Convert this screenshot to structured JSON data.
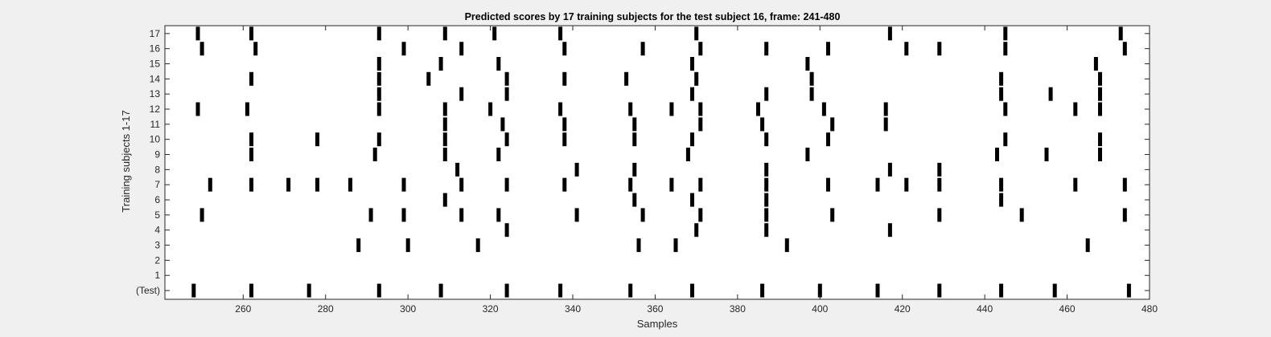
{
  "chart_data": {
    "type": "scatter",
    "title": "Predicted scores by 17 training subjects for the test subject 16, frame: 241-480",
    "xlabel": "Samples",
    "ylabel": "Training subjects 1-17",
    "xlim": [
      241,
      480
    ],
    "xticks": [
      "260",
      "280",
      "300",
      "320",
      "340",
      "360",
      "380",
      "400",
      "420",
      "440",
      "460",
      "480"
    ],
    "xtick_values": [
      260,
      280,
      300,
      320,
      340,
      360,
      380,
      400,
      420,
      440,
      460,
      480
    ],
    "yticks": [
      "(Test)",
      "1",
      "2",
      "3",
      "4",
      "5",
      "6",
      "7",
      "8",
      "9",
      "10",
      "11",
      "12",
      "13",
      "14",
      "15",
      "16",
      "17"
    ],
    "grid": false,
    "legend": "none",
    "mark_color": "#000000",
    "rows": [
      {
        "label": "(Test)",
        "x": [
          248,
          262,
          276,
          293,
          308,
          324,
          337,
          354,
          369,
          386,
          400,
          414,
          429,
          444,
          457,
          475
        ]
      },
      {
        "label": "1",
        "x": []
      },
      {
        "label": "2",
        "x": []
      },
      {
        "label": "3",
        "x": [
          288,
          300,
          317,
          356,
          365,
          392,
          465
        ]
      },
      {
        "label": "4",
        "x": [
          324,
          370,
          387,
          417
        ]
      },
      {
        "label": "5",
        "x": [
          250,
          291,
          299,
          313,
          322,
          341,
          357,
          371,
          387,
          403,
          429,
          449,
          474
        ]
      },
      {
        "label": "6",
        "x": [
          309,
          355,
          369,
          387,
          444
        ]
      },
      {
        "label": "7",
        "x": [
          252,
          262,
          271,
          278,
          286,
          299,
          313,
          324,
          338,
          354,
          364,
          371,
          387,
          402,
          414,
          421,
          429,
          444,
          462,
          474
        ]
      },
      {
        "label": "8",
        "x": [
          312,
          341,
          355,
          387,
          417,
          429
        ]
      },
      {
        "label": "9",
        "x": [
          262,
          292,
          309,
          322,
          368,
          397,
          443,
          455,
          468
        ]
      },
      {
        "label": "10",
        "x": [
          262,
          278,
          293,
          309,
          324,
          338,
          355,
          369,
          387,
          402,
          445,
          468
        ]
      },
      {
        "label": "11",
        "x": [
          309,
          323,
          338,
          355,
          371,
          386,
          403,
          416
        ]
      },
      {
        "label": "12",
        "x": [
          249,
          261,
          293,
          309,
          320,
          337,
          354,
          364,
          371,
          385,
          401,
          416,
          445,
          462,
          468
        ]
      },
      {
        "label": "13",
        "x": [
          293,
          313,
          324,
          369,
          387,
          398,
          444,
          456,
          468
        ]
      },
      {
        "label": "14",
        "x": [
          262,
          293,
          305,
          324,
          338,
          353,
          370,
          398,
          444,
          468
        ]
      },
      {
        "label": "15",
        "x": [
          293,
          308,
          322,
          369,
          397,
          467
        ]
      },
      {
        "label": "16",
        "x": [
          250,
          263,
          299,
          313,
          338,
          357,
          371,
          387,
          402,
          421,
          429,
          445,
          474
        ]
      },
      {
        "label": "17",
        "x": [
          249,
          262,
          293,
          309,
          321,
          337,
          370,
          417,
          445,
          473
        ]
      }
    ]
  }
}
